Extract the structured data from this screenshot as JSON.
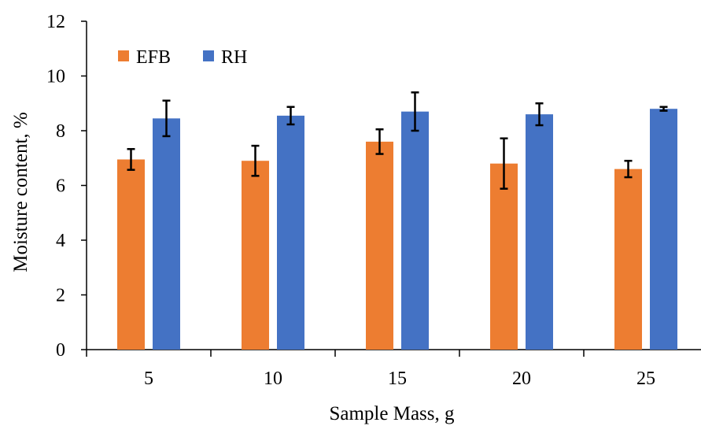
{
  "chart_data": {
    "type": "bar",
    "xlabel": "Sample Mass, g",
    "ylabel": "Moisture content, %",
    "categories": [
      "5",
      "10",
      "15",
      "20",
      "25"
    ],
    "ylim": [
      0,
      12
    ],
    "yticks": [
      "0",
      "2",
      "4",
      "6",
      "8",
      "10",
      "12"
    ],
    "grid": false,
    "legend_position": "top-left",
    "series": [
      {
        "name": "EFB",
        "color": "#ED7D31",
        "values": [
          6.95,
          6.9,
          7.6,
          6.8,
          6.6
        ],
        "errors": [
          0.38,
          0.55,
          0.45,
          0.92,
          0.3
        ]
      },
      {
        "name": "RH",
        "color": "#4472C4",
        "values": [
          8.45,
          8.55,
          8.7,
          8.6,
          8.8
        ],
        "errors": [
          0.65,
          0.32,
          0.7,
          0.4,
          0.07
        ]
      }
    ]
  }
}
